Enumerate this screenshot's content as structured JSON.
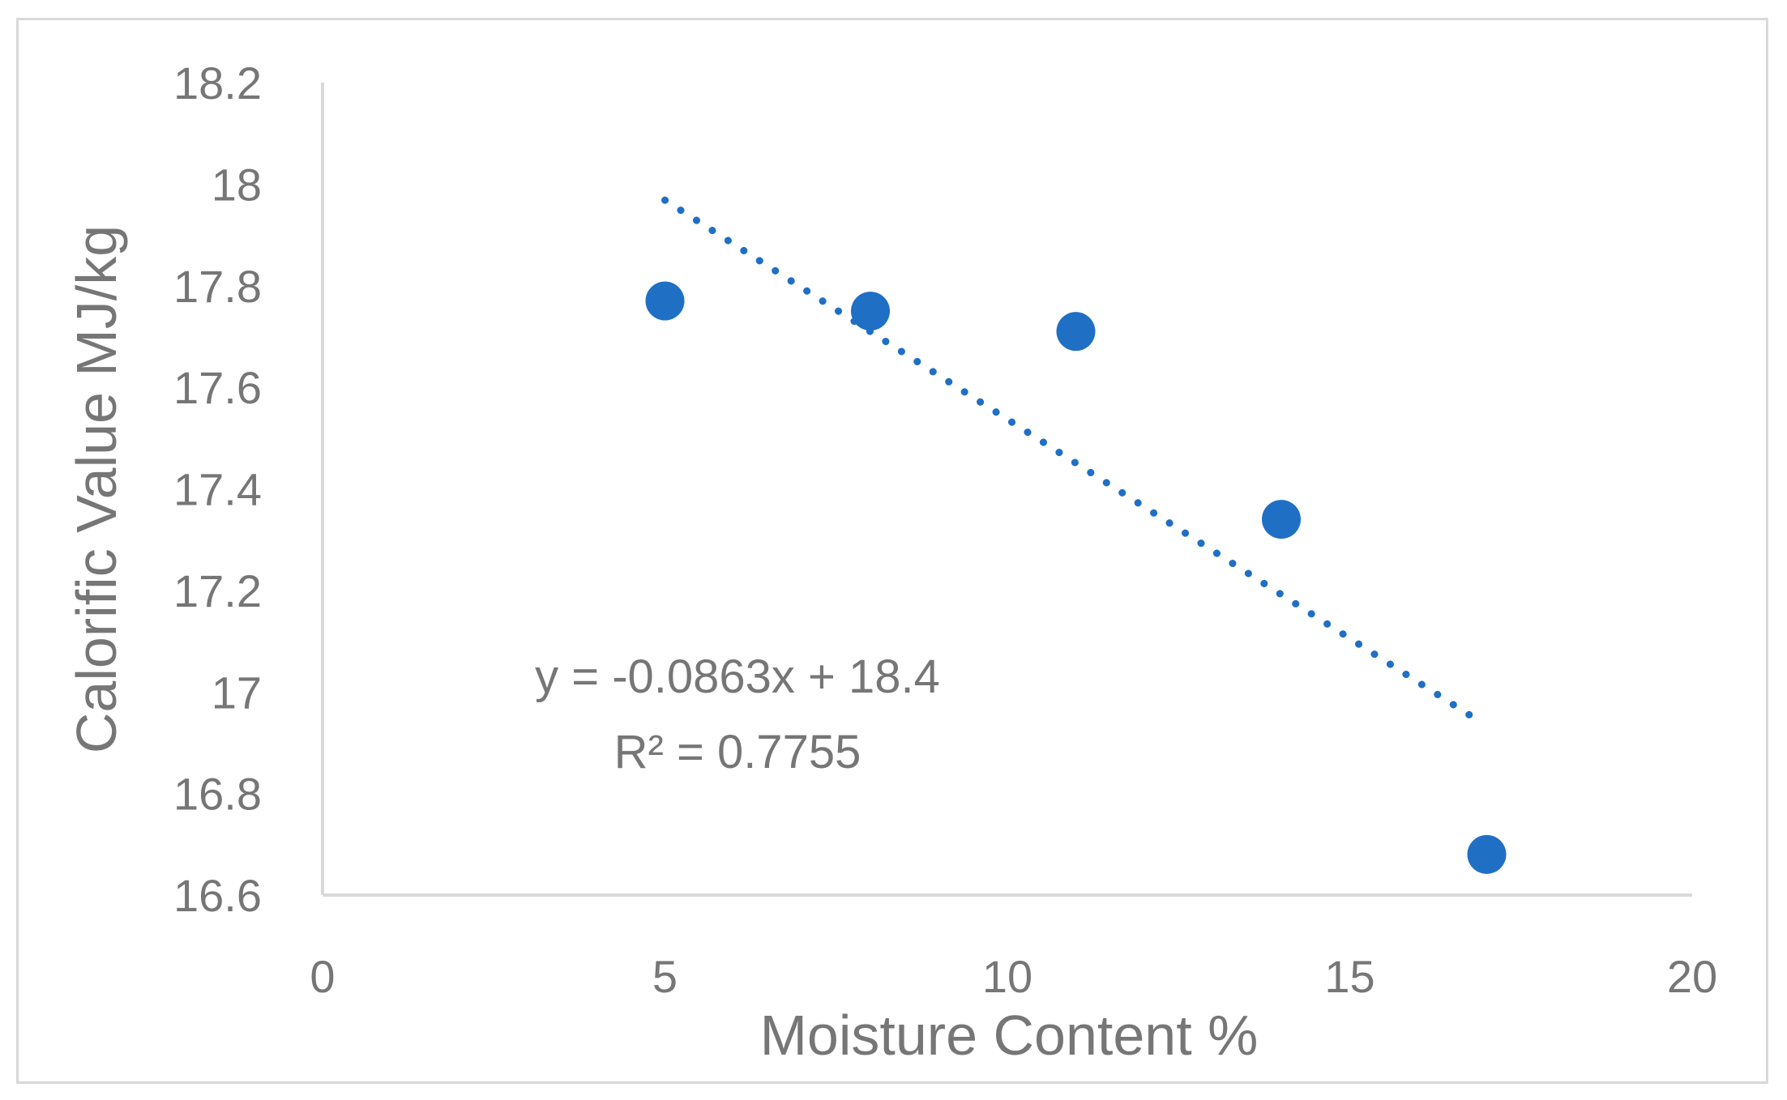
{
  "chart_data": {
    "type": "scatter",
    "title": "",
    "xlabel": "Moisture Content %",
    "ylabel": "Calorific Value  MJ/kg",
    "xlim": [
      0,
      20
    ],
    "ylim": [
      16.6,
      18.2
    ],
    "x_ticks": [
      "0",
      "5",
      "10",
      "15",
      "20"
    ],
    "y_ticks": [
      "16.6",
      "16.8",
      "17",
      "17.2",
      "17.4",
      "17.6",
      "17.8",
      "18",
      "18.2"
    ],
    "grid": false,
    "legend": "none",
    "series": [
      {
        "color": "#1f6fc5",
        "points": [
          {
            "x": 5,
            "y": 17.77
          },
          {
            "x": 8,
            "y": 17.75
          },
          {
            "x": 11,
            "y": 17.71
          },
          {
            "x": 14,
            "y": 17.34
          },
          {
            "x": 17,
            "y": 16.68
          }
        ]
      }
    ],
    "trendline": {
      "style": "dotted",
      "color": "#1f6fc5",
      "slope": -0.0863,
      "intercept": 18.4,
      "x_range": [
        5,
        16.8
      ],
      "equation_text": "y = -0.0863x + 18.4",
      "r2_text": "R² = 0.7755"
    }
  }
}
